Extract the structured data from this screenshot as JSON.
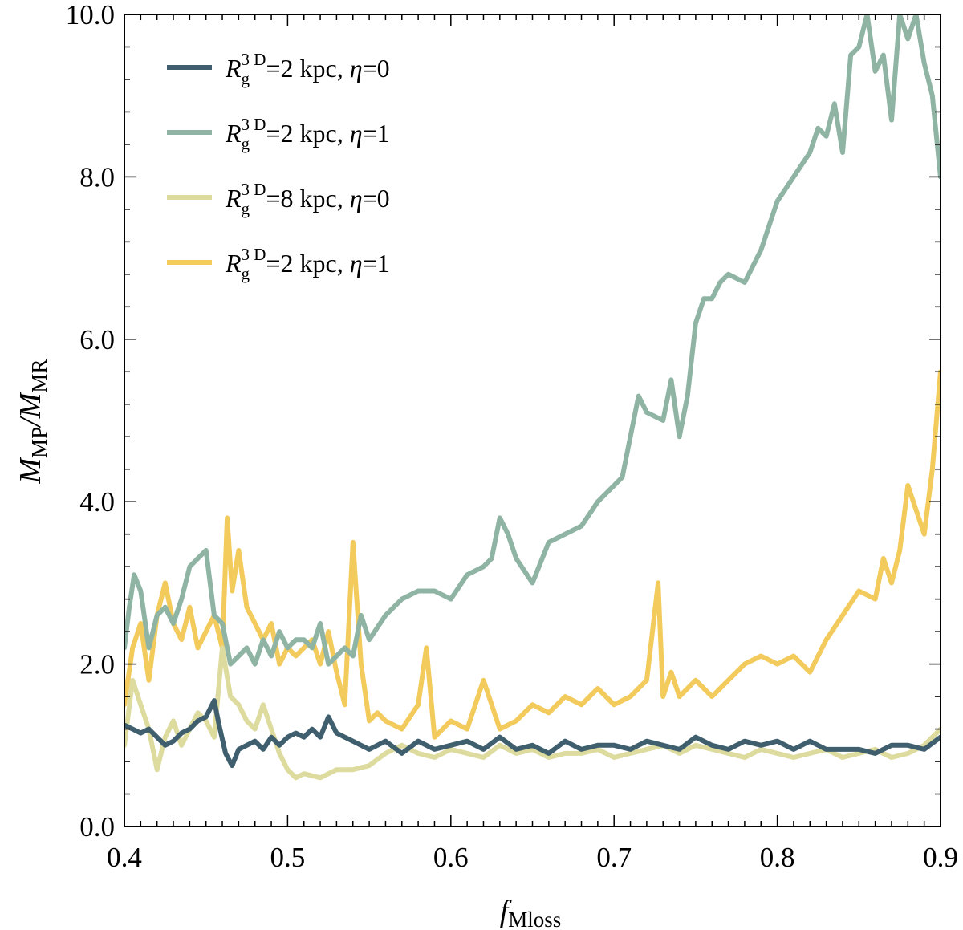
{
  "chart_data": {
    "type": "line",
    "title": "",
    "xlabel": {
      "main": "f",
      "sub": "Mloss"
    },
    "ylabel": {
      "numer_main": "M",
      "numer_sub": "MP",
      "denom_main": "M",
      "denom_sub": "MR"
    },
    "xlim": [
      0.4,
      0.9
    ],
    "ylim": [
      0.0,
      10.0
    ],
    "x_ticks": [
      0.4,
      0.5,
      0.6,
      0.7,
      0.8,
      0.9
    ],
    "x_tick_labels": [
      "0.4",
      "0.5",
      "0.6",
      "0.7",
      "0.8",
      "0.9"
    ],
    "y_ticks": [
      0.0,
      2.0,
      4.0,
      6.0,
      8.0,
      10.0
    ],
    "y_tick_labels": [
      "0.0",
      "2.0",
      "4.0",
      "6.0",
      "8.0",
      "10.0"
    ],
    "grid": false,
    "legend_position": "top-left",
    "series": [
      {
        "name": "Rg3D=2 kpc, η=0",
        "color": "#3f5f6e",
        "legend": {
          "R": "R",
          "sub": "g",
          "sup": "3 D",
          "value": "=2 kpc,  ",
          "eta": "η",
          "eta_value": "=0"
        },
        "x": [
          0.4,
          0.405,
          0.41,
          0.415,
          0.42,
          0.425,
          0.43,
          0.435,
          0.44,
          0.445,
          0.45,
          0.455,
          0.458,
          0.462,
          0.466,
          0.47,
          0.475,
          0.48,
          0.485,
          0.49,
          0.495,
          0.5,
          0.505,
          0.51,
          0.515,
          0.52,
          0.525,
          0.53,
          0.535,
          0.54,
          0.545,
          0.55,
          0.56,
          0.57,
          0.58,
          0.59,
          0.6,
          0.61,
          0.62,
          0.63,
          0.64,
          0.65,
          0.66,
          0.67,
          0.68,
          0.69,
          0.7,
          0.71,
          0.72,
          0.73,
          0.74,
          0.75,
          0.76,
          0.77,
          0.78,
          0.79,
          0.8,
          0.81,
          0.82,
          0.83,
          0.84,
          0.85,
          0.86,
          0.87,
          0.88,
          0.89,
          0.9
        ],
        "values": [
          1.25,
          1.2,
          1.15,
          1.2,
          1.1,
          1.0,
          1.05,
          1.15,
          1.2,
          1.3,
          1.35,
          1.55,
          1.25,
          0.9,
          0.75,
          0.95,
          1.0,
          1.05,
          0.95,
          1.1,
          1.0,
          1.1,
          1.15,
          1.1,
          1.2,
          1.1,
          1.35,
          1.15,
          1.1,
          1.05,
          1.0,
          0.95,
          1.05,
          0.9,
          1.05,
          0.95,
          1.0,
          1.05,
          0.95,
          1.1,
          0.95,
          1.0,
          0.9,
          1.05,
          0.95,
          1.0,
          1.0,
          0.95,
          1.05,
          1.0,
          0.95,
          1.1,
          1.0,
          0.95,
          1.05,
          1.0,
          1.05,
          0.95,
          1.05,
          0.95,
          0.95,
          0.95,
          0.9,
          1.0,
          1.0,
          0.95,
          1.1
        ]
      },
      {
        "name": "Rg3D=2 kpc, η=1",
        "color": "#8fb4a4",
        "legend": {
          "R": "R",
          "sub": "g",
          "sup": "3 D",
          "value": "=2 kpc,  ",
          "eta": "η",
          "eta_value": "=1"
        },
        "x": [
          0.4,
          0.403,
          0.406,
          0.41,
          0.415,
          0.42,
          0.425,
          0.43,
          0.435,
          0.44,
          0.445,
          0.45,
          0.455,
          0.46,
          0.465,
          0.47,
          0.475,
          0.48,
          0.485,
          0.49,
          0.495,
          0.5,
          0.505,
          0.51,
          0.515,
          0.52,
          0.525,
          0.53,
          0.535,
          0.54,
          0.545,
          0.55,
          0.56,
          0.57,
          0.58,
          0.59,
          0.6,
          0.61,
          0.62,
          0.625,
          0.63,
          0.635,
          0.64,
          0.65,
          0.66,
          0.67,
          0.68,
          0.69,
          0.7,
          0.705,
          0.71,
          0.715,
          0.72,
          0.73,
          0.735,
          0.74,
          0.745,
          0.75,
          0.755,
          0.76,
          0.765,
          0.77,
          0.78,
          0.79,
          0.8,
          0.81,
          0.82,
          0.825,
          0.83,
          0.835,
          0.84,
          0.845,
          0.85,
          0.855,
          0.86,
          0.865,
          0.87,
          0.875,
          0.88,
          0.885,
          0.89,
          0.895,
          0.9
        ],
        "values": [
          2.2,
          2.7,
          3.1,
          2.9,
          2.2,
          2.6,
          2.7,
          2.5,
          2.8,
          3.2,
          3.3,
          3.4,
          2.6,
          2.5,
          2.0,
          2.1,
          2.2,
          2.0,
          2.3,
          2.1,
          2.4,
          2.2,
          2.3,
          2.3,
          2.2,
          2.5,
          2.0,
          2.1,
          2.2,
          2.1,
          2.6,
          2.3,
          2.6,
          2.8,
          2.9,
          2.9,
          2.8,
          3.1,
          3.2,
          3.3,
          3.8,
          3.6,
          3.3,
          3.0,
          3.5,
          3.6,
          3.7,
          4.0,
          4.2,
          4.3,
          4.8,
          5.3,
          5.1,
          5.0,
          5.5,
          4.8,
          5.3,
          6.2,
          6.5,
          6.5,
          6.7,
          6.8,
          6.7,
          7.1,
          7.7,
          8.0,
          8.3,
          8.6,
          8.5,
          8.9,
          8.3,
          9.5,
          9.6,
          10.0,
          9.3,
          9.5,
          8.7,
          10.0,
          9.7,
          10.0,
          9.4,
          9.0,
          8.0
        ]
      },
      {
        "name": "Rg3D=8 kpc, η=0",
        "color": "#dddb9e",
        "legend": {
          "R": "R",
          "sub": "g",
          "sup": "3 D",
          "value": "=8 kpc,  ",
          "eta": "η",
          "eta_value": "=0"
        },
        "x": [
          0.4,
          0.405,
          0.41,
          0.415,
          0.42,
          0.425,
          0.43,
          0.435,
          0.44,
          0.445,
          0.45,
          0.455,
          0.46,
          0.465,
          0.47,
          0.475,
          0.48,
          0.485,
          0.49,
          0.495,
          0.5,
          0.505,
          0.51,
          0.52,
          0.53,
          0.54,
          0.55,
          0.56,
          0.57,
          0.58,
          0.59,
          0.6,
          0.61,
          0.62,
          0.63,
          0.64,
          0.65,
          0.66,
          0.67,
          0.68,
          0.69,
          0.7,
          0.71,
          0.72,
          0.73,
          0.74,
          0.75,
          0.76,
          0.77,
          0.78,
          0.79,
          0.8,
          0.81,
          0.82,
          0.83,
          0.84,
          0.85,
          0.86,
          0.87,
          0.88,
          0.89,
          0.9
        ],
        "values": [
          1.0,
          1.8,
          1.5,
          1.2,
          0.7,
          1.1,
          1.3,
          1.0,
          1.2,
          1.4,
          1.3,
          1.1,
          2.2,
          1.6,
          1.5,
          1.3,
          1.2,
          1.5,
          1.2,
          0.9,
          0.7,
          0.6,
          0.65,
          0.6,
          0.7,
          0.7,
          0.75,
          0.9,
          1.0,
          0.9,
          0.85,
          0.95,
          0.9,
          0.85,
          1.0,
          0.9,
          0.95,
          0.85,
          0.9,
          0.9,
          0.95,
          0.85,
          0.9,
          0.95,
          1.0,
          0.9,
          1.0,
          0.95,
          0.9,
          0.85,
          0.95,
          0.9,
          0.85,
          0.9,
          0.95,
          0.85,
          0.9,
          0.95,
          0.85,
          0.9,
          1.0,
          1.2
        ]
      },
      {
        "name": "Rg3D=2 kpc, η=1",
        "color": "#f2cb5c",
        "legend": {
          "R": "R",
          "sub": "g",
          "sup": "3 D",
          "value": "=2 kpc,  ",
          "eta": "η",
          "eta_value": "=1"
        },
        "x": [
          0.4,
          0.405,
          0.41,
          0.415,
          0.42,
          0.425,
          0.43,
          0.435,
          0.44,
          0.445,
          0.45,
          0.455,
          0.46,
          0.463,
          0.466,
          0.47,
          0.475,
          0.48,
          0.485,
          0.49,
          0.495,
          0.5,
          0.505,
          0.51,
          0.515,
          0.52,
          0.525,
          0.53,
          0.535,
          0.54,
          0.545,
          0.55,
          0.555,
          0.56,
          0.57,
          0.58,
          0.585,
          0.59,
          0.6,
          0.61,
          0.62,
          0.63,
          0.64,
          0.65,
          0.66,
          0.67,
          0.68,
          0.69,
          0.7,
          0.71,
          0.72,
          0.727,
          0.73,
          0.735,
          0.74,
          0.75,
          0.76,
          0.77,
          0.78,
          0.79,
          0.8,
          0.81,
          0.82,
          0.83,
          0.84,
          0.85,
          0.86,
          0.865,
          0.87,
          0.875,
          0.88,
          0.885,
          0.89,
          0.895,
          0.9
        ],
        "values": [
          1.5,
          2.2,
          2.5,
          1.8,
          2.6,
          3.0,
          2.5,
          2.3,
          2.7,
          2.2,
          2.4,
          2.6,
          2.2,
          3.8,
          2.9,
          3.4,
          2.7,
          2.5,
          2.3,
          2.5,
          2.0,
          2.2,
          2.1,
          2.2,
          2.3,
          2.0,
          2.4,
          1.9,
          1.5,
          3.5,
          2.0,
          1.3,
          1.4,
          1.3,
          1.2,
          1.5,
          2.2,
          1.1,
          1.3,
          1.2,
          1.8,
          1.2,
          1.3,
          1.5,
          1.4,
          1.6,
          1.5,
          1.7,
          1.5,
          1.6,
          1.8,
          3.0,
          1.6,
          1.9,
          1.6,
          1.8,
          1.6,
          1.8,
          2.0,
          2.1,
          2.0,
          2.1,
          1.9,
          2.3,
          2.6,
          2.9,
          2.8,
          3.3,
          3.0,
          3.4,
          4.2,
          3.9,
          3.6,
          4.4,
          5.6
        ]
      }
    ]
  }
}
